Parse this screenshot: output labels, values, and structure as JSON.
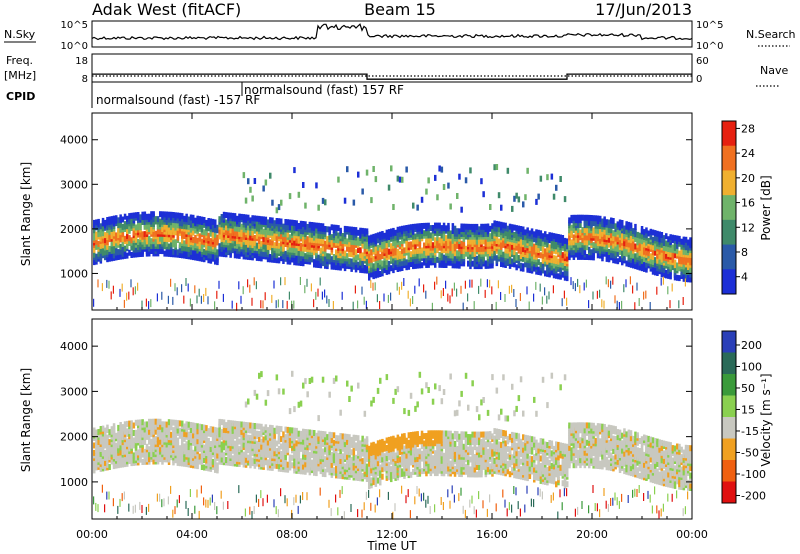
{
  "header": {
    "station": "Adak West (fitACF)",
    "beam": "Beam 15",
    "date": "17/Jun/2013"
  },
  "chart_data": [
    {
      "type": "line",
      "panel": "noise",
      "left_label": "N.Sky",
      "right_label": "N.Search",
      "y_ticks_left": [
        "10^5",
        "10^0"
      ],
      "y_ticks_right": [
        "10^5",
        "10^0"
      ]
    },
    {
      "type": "line",
      "panel": "frequency",
      "left_label_1": "Freq.",
      "left_label_2": "[MHz]",
      "right_label": "Nave",
      "y_ticks_left": [
        "18",
        "8"
      ],
      "y_ticks_right": [
        "60",
        "0"
      ],
      "freq_mhz_steps": [
        {
          "start_h": 0,
          "end_h": 11,
          "value": 10.8
        },
        {
          "start_h": 11,
          "end_h": 19,
          "value": 9.0
        },
        {
          "start_h": 19,
          "end_h": 24,
          "value": 10.8
        }
      ]
    },
    {
      "type": "text",
      "panel": "cpid",
      "label": "CPID",
      "entries": [
        {
          "text": "normalsound (fast) -157 RF",
          "start_h": 0
        },
        {
          "text": "normalsound (fast) 157 RF",
          "start_h": 6
        }
      ]
    },
    {
      "type": "heatmap",
      "panel": "power",
      "ylabel": "Slant Range [km]",
      "ylim": [
        180,
        4600
      ],
      "y_ticks": [
        1000,
        2000,
        3000,
        4000
      ],
      "colorbar_label": "Power [dB]",
      "colorbar_ticks": [
        "4",
        "8",
        "12",
        "16",
        "20",
        "24",
        "28"
      ],
      "colors": [
        "#1c2fd6",
        "#2a5aa8",
        "#3f8a6a",
        "#6fb36a",
        "#f0b030",
        "#f07020",
        "#e62010"
      ]
    },
    {
      "type": "heatmap",
      "panel": "velocity",
      "ylabel": "Slant Range [km]",
      "ylim": [
        180,
        4600
      ],
      "y_ticks": [
        1000,
        2000,
        3000,
        4000
      ],
      "colorbar_label": "Velocity [m s⁻¹]",
      "colorbar_ticks": [
        "200",
        "100",
        "50",
        "15",
        "-15",
        "-50",
        "-100",
        "-200"
      ],
      "colors": [
        "#2a3fb8",
        "#2a6a58",
        "#3a9a3a",
        "#8ad050",
        "#c8c8c0",
        "#f0a020",
        "#f06010",
        "#e01010"
      ]
    }
  ],
  "x_axis": {
    "xlabel": "Time UT",
    "ticks": [
      "00:00",
      "04:00",
      "08:00",
      "12:00",
      "16:00",
      "20:00",
      "00:00"
    ]
  }
}
